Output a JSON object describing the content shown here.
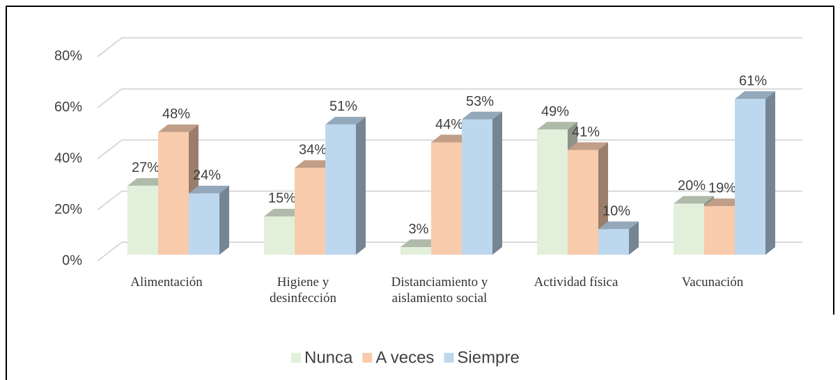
{
  "chart_data": {
    "type": "bar3d",
    "categories": [
      "Alimentación",
      "Higiene y\ndesinfección",
      "Distanciamiento y\naislamiento social",
      "Actividad física",
      "Vacunación"
    ],
    "series": [
      {
        "name": "Nunca",
        "color": "#e2efda",
        "values": [
          27,
          15,
          3,
          49,
          20
        ],
        "value_labels": [
          "27%",
          "15%",
          "3%",
          "49%",
          "20%"
        ]
      },
      {
        "name": "A veces",
        "color": "#f8cbad",
        "values": [
          48,
          34,
          44,
          41,
          19
        ],
        "value_labels": [
          "48%",
          "34%",
          "44%",
          "41%",
          "19%"
        ]
      },
      {
        "name": "Siempre",
        "color": "#bdd7ee",
        "values": [
          24,
          51,
          53,
          10,
          61
        ],
        "value_labels": [
          "24%",
          "51%",
          "53%",
          "10%",
          "61%"
        ]
      }
    ],
    "ylim": [
      0,
      80
    ],
    "yticks": [
      {
        "value": 0,
        "label": "0%"
      },
      {
        "value": 20,
        "label": "20%"
      },
      {
        "value": 40,
        "label": "40%"
      },
      {
        "value": 60,
        "label": "60%"
      },
      {
        "value": 80,
        "label": "80%"
      }
    ],
    "grid": true,
    "legend": "bottom"
  }
}
